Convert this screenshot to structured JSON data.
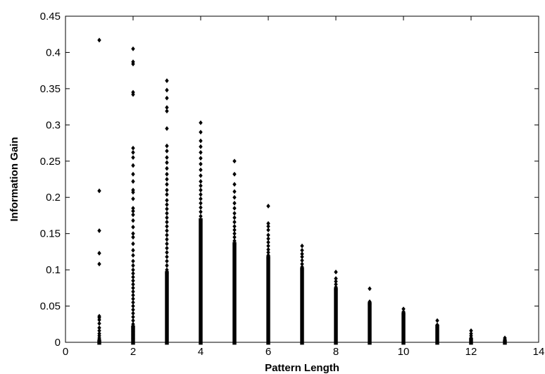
{
  "chart_data": {
    "type": "scatter",
    "title": "",
    "xlabel": "Pattern Length",
    "ylabel": "Information Gain",
    "xlim": [
      0,
      14
    ],
    "ylim": [
      0,
      0.45
    ],
    "xticks": [
      0,
      2,
      4,
      6,
      8,
      10,
      12,
      14
    ],
    "xtick_labels": [
      "0",
      "2",
      "4",
      "6",
      "8",
      "10",
      "12",
      "14"
    ],
    "yticks": [
      0,
      0.05,
      0.1,
      0.15,
      0.2,
      0.25,
      0.3,
      0.35,
      0.4,
      0.45
    ],
    "ytick_labels": [
      "0",
      "0.05",
      "0.1",
      "0.15",
      "0.2",
      "0.25",
      "0.3",
      "0.35",
      "0.4",
      "0.45"
    ],
    "grid": false,
    "legend": "none",
    "marker": "diamond",
    "marker_color": "#000000",
    "series": [
      {
        "points_by_x": [
          {
            "x": 1,
            "y": [
              0.417,
              0.209,
              0.154,
              0.123,
              0.108,
              0.036,
              0.034,
              0.031,
              0.026,
              0.02,
              0.016,
              0.012,
              0.009,
              0.006,
              0.004,
              0.002,
              0.001,
              0.0
            ]
          },
          {
            "x": 2,
            "y": [
              0.405,
              0.387,
              0.384,
              0.345,
              0.342,
              0.268,
              0.262,
              0.255,
              0.244,
              0.232,
              0.222,
              0.21,
              0.207,
              0.198,
              0.185,
              0.181,
              0.176,
              0.168,
              0.159,
              0.15,
              0.145,
              0.136,
              0.127,
              0.12,
              0.112,
              0.106,
              0.1,
              0.095,
              0.09,
              0.085,
              0.08,
              0.075,
              0.07,
              0.065,
              0.06,
              0.055,
              0.05,
              0.045,
              0.04,
              0.035,
              0.03,
              0.025,
              0.02,
              0.015,
              0.01,
              0.005,
              0.0
            ]
          },
          {
            "x": 3,
            "y": [
              0.361,
              0.348,
              0.337,
              0.324,
              0.319,
              0.295,
              0.271,
              0.264,
              0.255,
              0.248,
              0.24,
              0.232,
              0.225,
              0.218,
              0.21,
              0.204,
              0.196,
              0.19,
              0.184,
              0.178,
              0.172,
              0.166,
              0.16,
              0.154,
              0.148,
              0.142,
              0.136,
              0.13,
              0.124,
              0.118,
              0.112,
              0.106,
              0.1,
              0.095
            ]
          },
          {
            "x": 4,
            "y": [
              0.303,
              0.29,
              0.278,
              0.27,
              0.262,
              0.254,
              0.246,
              0.238,
              0.23,
              0.222,
              0.216,
              0.21,
              0.204,
              0.198,
              0.192,
              0.186,
              0.18,
              0.174,
              0.168
            ]
          },
          {
            "x": 5,
            "y": [
              0.25,
              0.232,
              0.218,
              0.208,
              0.2,
              0.192,
              0.185,
              0.178,
              0.172,
              0.166,
              0.16,
              0.155,
              0.15,
              0.145,
              0.14,
              0.135
            ]
          },
          {
            "x": 6,
            "y": [
              0.188,
              0.164,
              0.16,
              0.155,
              0.148,
              0.143,
              0.138,
              0.133,
              0.128,
              0.124,
              0.12,
              0.116
            ]
          },
          {
            "x": 7,
            "y": [
              0.133,
              0.127,
              0.122,
              0.118,
              0.113,
              0.108,
              0.104,
              0.1
            ]
          },
          {
            "x": 8,
            "y": [
              0.097,
              0.088,
              0.084,
              0.08,
              0.076,
              0.072
            ]
          },
          {
            "x": 9,
            "y": [
              0.074,
              0.056,
              0.054,
              0.052
            ]
          },
          {
            "x": 10,
            "y": [
              0.046,
              0.042,
              0.038
            ]
          },
          {
            "x": 11,
            "y": [
              0.03,
              0.024,
              0.021
            ]
          },
          {
            "x": 12,
            "y": [
              0.016,
              0.012,
              0.009,
              0.006,
              0.003
            ]
          },
          {
            "x": 13,
            "y": [
              0.006,
              0.004,
              0.002,
              0.0
            ]
          }
        ],
        "solid_bands": [
          {
            "x": 1,
            "y_min": 0.0,
            "y_max": 0.0
          },
          {
            "x": 2,
            "y_min": 0.0,
            "y_max": 0.02
          },
          {
            "x": 3,
            "y_min": 0.0,
            "y_max": 0.095
          },
          {
            "x": 4,
            "y_min": 0.0,
            "y_max": 0.168
          },
          {
            "x": 5,
            "y_min": 0.0,
            "y_max": 0.135
          },
          {
            "x": 6,
            "y_min": 0.0,
            "y_max": 0.116
          },
          {
            "x": 7,
            "y_min": 0.0,
            "y_max": 0.1
          },
          {
            "x": 8,
            "y_min": 0.0,
            "y_max": 0.072
          },
          {
            "x": 9,
            "y_min": 0.0,
            "y_max": 0.052
          },
          {
            "x": 10,
            "y_min": 0.0,
            "y_max": 0.038
          },
          {
            "x": 11,
            "y_min": 0.0,
            "y_max": 0.021
          },
          {
            "x": 12,
            "y_min": 0.0,
            "y_max": 0.003
          },
          {
            "x": 13,
            "y_min": 0.0,
            "y_max": 0.0
          }
        ]
      }
    ]
  }
}
